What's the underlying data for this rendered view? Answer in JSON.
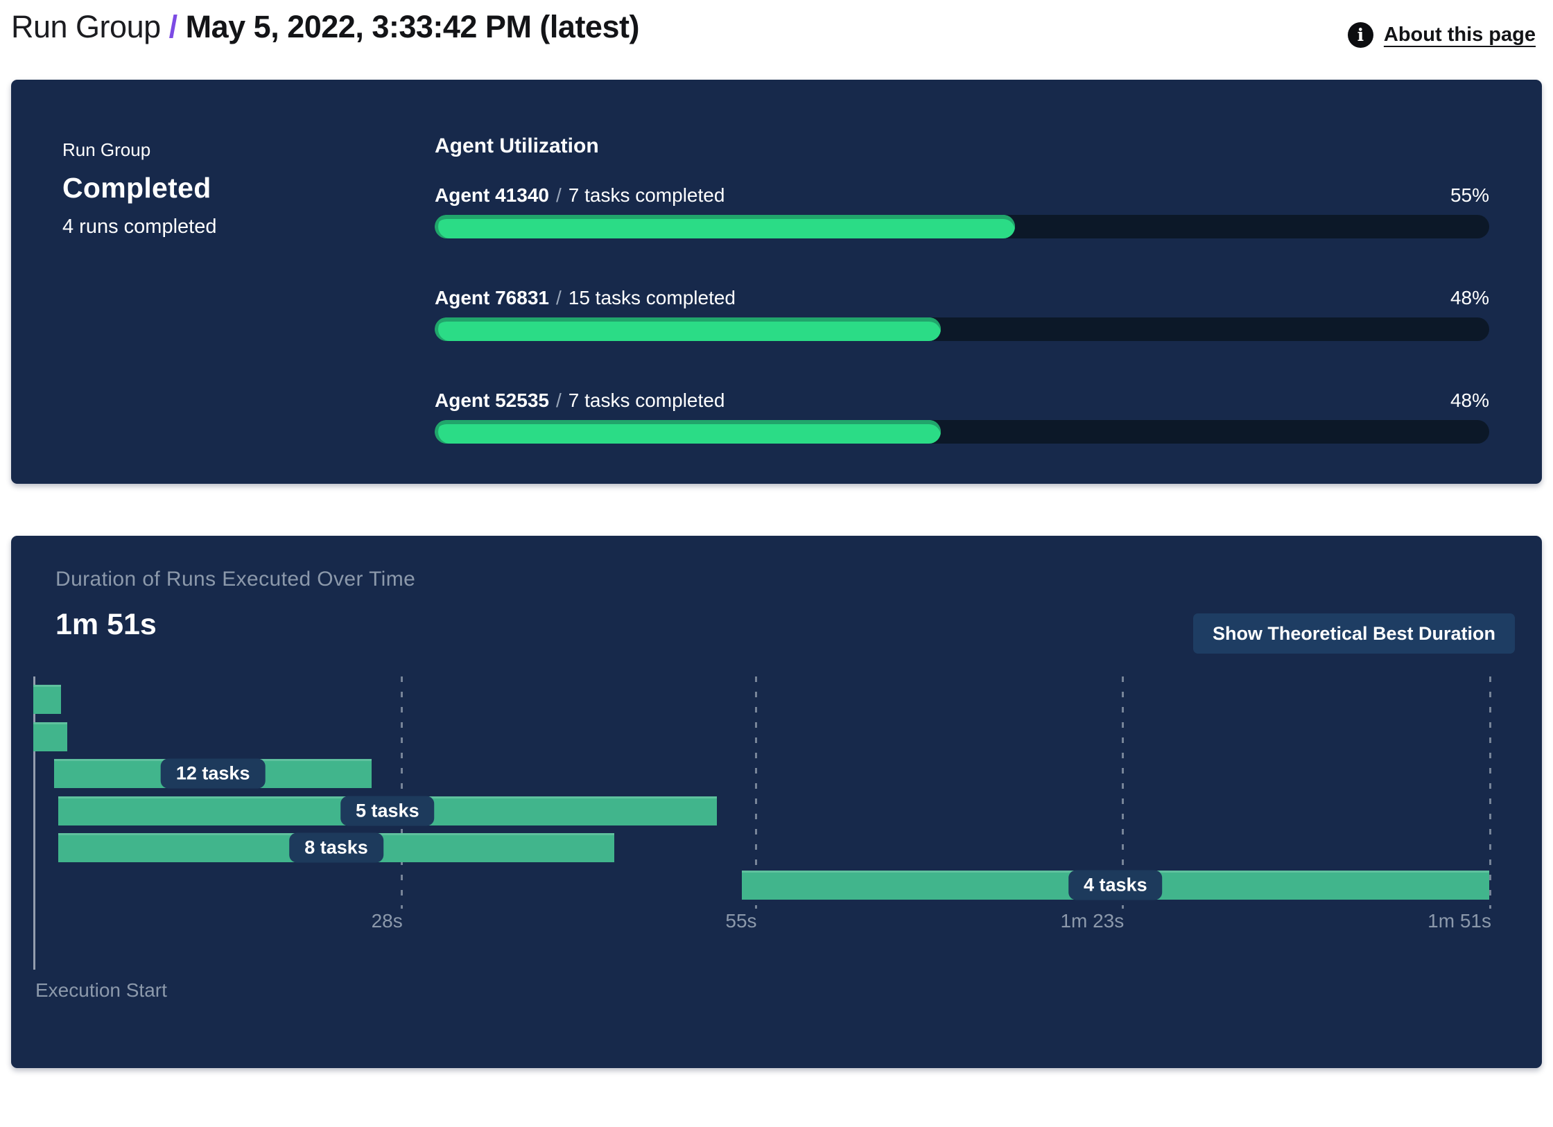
{
  "header": {
    "title_prefix": "Run Group",
    "separator": "/",
    "title_main": "May 5, 2022, 3:33:42 PM (latest)",
    "info_icon_glyph": "i",
    "about_link": "About this page"
  },
  "summary": {
    "label": "Run Group",
    "status": "Completed",
    "subtext": "4 runs completed"
  },
  "agent_utilization": {
    "heading": "Agent Utilization",
    "slash": "/",
    "agents": [
      {
        "name": "Agent 41340",
        "tasks": "7 tasks completed",
        "percent": 55,
        "percent_label": "55%"
      },
      {
        "name": "Agent 76831",
        "tasks": "15 tasks completed",
        "percent": 48,
        "percent_label": "48%"
      },
      {
        "name": "Agent 52535",
        "tasks": "7 tasks completed",
        "percent": 48,
        "percent_label": "48%"
      }
    ]
  },
  "duration_panel": {
    "title": "Duration of Runs Executed Over Time",
    "total_duration": "1m 51s",
    "button_label": "Show Theoretical Best Duration",
    "axis_caption": "Execution Start"
  },
  "chart_data": {
    "type": "gantt",
    "title": "Duration of Runs Executed Over Time",
    "x_unit": "seconds",
    "x_range": [
      0,
      111
    ],
    "ticks": [
      {
        "label": "28s",
        "value": 28
      },
      {
        "label": "55s",
        "value": 55
      },
      {
        "label": "1m 23s",
        "value": 83
      },
      {
        "label": "1m 51s",
        "value": 111
      }
    ],
    "runs": [
      {
        "label": "",
        "start": 0,
        "end": 2.1
      },
      {
        "label": "",
        "start": 0,
        "end": 2.6
      },
      {
        "label": "12 tasks",
        "start": 1.6,
        "end": 25.8
      },
      {
        "label": "5 tasks",
        "start": 1.9,
        "end": 52.1
      },
      {
        "label": "8 tasks",
        "start": 1.9,
        "end": 44.3
      },
      {
        "label": "4 tasks",
        "start": 54,
        "end": 111
      }
    ],
    "legend": "none",
    "grid": "dashed-vertical"
  },
  "colors": {
    "panel_bg": "#17294B",
    "accent_purple": "#7C4BE4",
    "progress_fill": "#2BDC86",
    "progress_fill_edge": "#21A56B",
    "progress_track": "#0C1828",
    "gantt_bar": "#41B58C",
    "pill_bg": "#1D3A5C",
    "button_bg": "#1E3D63",
    "muted_text": "#8C99AB"
  }
}
